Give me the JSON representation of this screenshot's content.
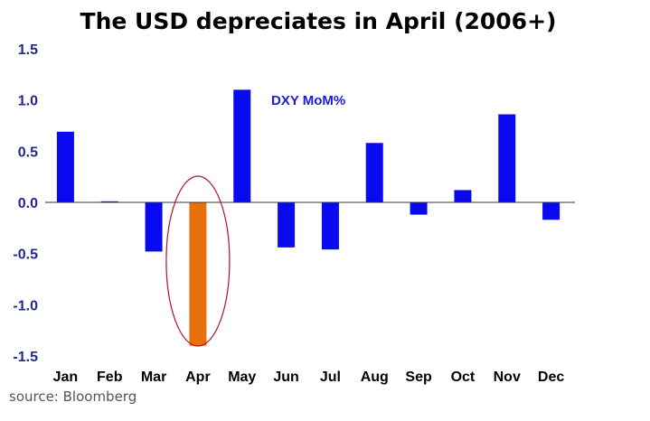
{
  "chart_data": {
    "type": "bar",
    "title": "The USD depreciates in April (2006+)",
    "series_label": "DXY MoM%",
    "categories": [
      "Jan",
      "Feb",
      "Mar",
      "Apr",
      "May",
      "Jun",
      "Jul",
      "Aug",
      "Sep",
      "Oct",
      "Nov",
      "Dec"
    ],
    "values": [
      0.69,
      0.01,
      -0.48,
      -1.4,
      1.1,
      -0.44,
      -0.46,
      0.58,
      -0.12,
      0.12,
      0.86,
      -0.17
    ],
    "highlight_index": 3,
    "ylim": [
      -1.5,
      1.5
    ],
    "yticks": [
      "1.5",
      "1.0",
      "0.5",
      "0.0",
      "-0.5",
      "-1.0",
      "-1.5"
    ],
    "ytick_values": [
      1.5,
      1.0,
      0.5,
      0.0,
      -0.5,
      -1.0,
      -1.5
    ],
    "xlabel": "",
    "ylabel": "",
    "source": "source: Bloomberg",
    "colors": {
      "bar": "#0a0af0",
      "highlight": "#e8700a",
      "ellipse": "#b0122a",
      "legend_text": "#1a1ae0",
      "axis": "#333333"
    }
  }
}
